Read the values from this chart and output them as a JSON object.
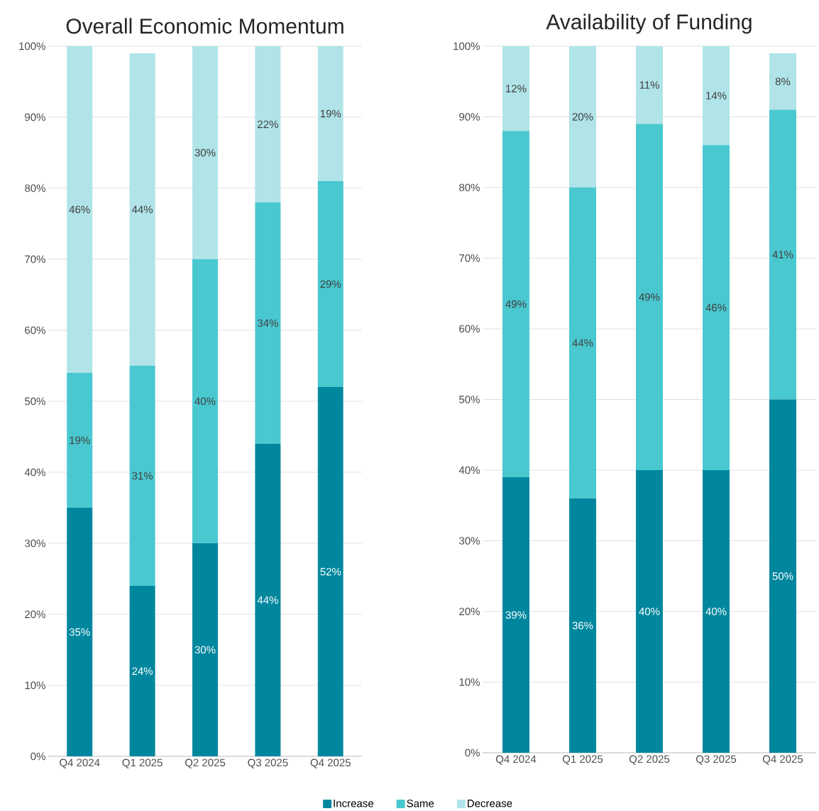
{
  "chart_data": [
    {
      "type": "bar",
      "title": "Overall Economic Momentum",
      "stacked": true,
      "grid": "y",
      "legend": "bottom",
      "categories": [
        "Q4 2024",
        "Q1 2025",
        "Q2 2025",
        "Q3 2025",
        "Q4 2025"
      ],
      "ylim": [
        0,
        100
      ],
      "yticks": [
        {
          "value": 0,
          "label": "0%"
        },
        {
          "value": 10,
          "label": "10%"
        },
        {
          "value": 20,
          "label": "20%"
        },
        {
          "value": 30,
          "label": "30%"
        },
        {
          "value": 40,
          "label": "40%"
        },
        {
          "value": 50,
          "label": "50%"
        },
        {
          "value": 60,
          "label": "60%"
        },
        {
          "value": 70,
          "label": "70%"
        },
        {
          "value": 80,
          "label": "80%"
        },
        {
          "value": 90,
          "label": "90%"
        },
        {
          "value": 100,
          "label": "100%"
        }
      ],
      "series": [
        {
          "name": "Increase",
          "color": "#00879e",
          "values": [
            35,
            24,
            30,
            44,
            52
          ],
          "value_labels": [
            "35%",
            "24%",
            "30%",
            "44%",
            "52%"
          ]
        },
        {
          "name": "Same",
          "color": "#4ac8d0",
          "values": [
            19,
            31,
            40,
            34,
            29
          ],
          "value_labels": [
            "19%",
            "31%",
            "40%",
            "34%",
            "29%"
          ]
        },
        {
          "name": "Decrease",
          "color": "#b0e4e8",
          "values": [
            46,
            44,
            30,
            22,
            19
          ],
          "value_labels": [
            "46%",
            "44%",
            "30%",
            "22%",
            "19%"
          ]
        }
      ]
    },
    {
      "type": "bar",
      "title": "Availability of Funding",
      "stacked": true,
      "grid": "y",
      "legend": "bottom",
      "categories": [
        "Q4 2024",
        "Q1 2025",
        "Q2 2025",
        "Q3 2025",
        "Q4 2025"
      ],
      "ylim": [
        0,
        100
      ],
      "yticks": [
        {
          "value": 0,
          "label": "0%"
        },
        {
          "value": 10,
          "label": "10%"
        },
        {
          "value": 20,
          "label": "20%"
        },
        {
          "value": 30,
          "label": "30%"
        },
        {
          "value": 40,
          "label": "40%"
        },
        {
          "value": 50,
          "label": "50%"
        },
        {
          "value": 60,
          "label": "60%"
        },
        {
          "value": 70,
          "label": "70%"
        },
        {
          "value": 80,
          "label": "80%"
        },
        {
          "value": 90,
          "label": "90%"
        },
        {
          "value": 100,
          "label": "100%"
        }
      ],
      "series": [
        {
          "name": "Increase",
          "color": "#00879e",
          "values": [
            39,
            36,
            40,
            40,
            50
          ],
          "value_labels": [
            "39%",
            "36%",
            "40%",
            "40%",
            "50%"
          ]
        },
        {
          "name": "Same",
          "color": "#4ac8d0",
          "values": [
            49,
            44,
            49,
            46,
            41
          ],
          "value_labels": [
            "49%",
            "44%",
            "49%",
            "46%",
            "41%"
          ]
        },
        {
          "name": "Decrease",
          "color": "#b0e4e8",
          "values": [
            12,
            20,
            11,
            14,
            8
          ],
          "value_labels": [
            "12%",
            "20%",
            "11%",
            "14%",
            "8%"
          ]
        }
      ]
    }
  ]
}
